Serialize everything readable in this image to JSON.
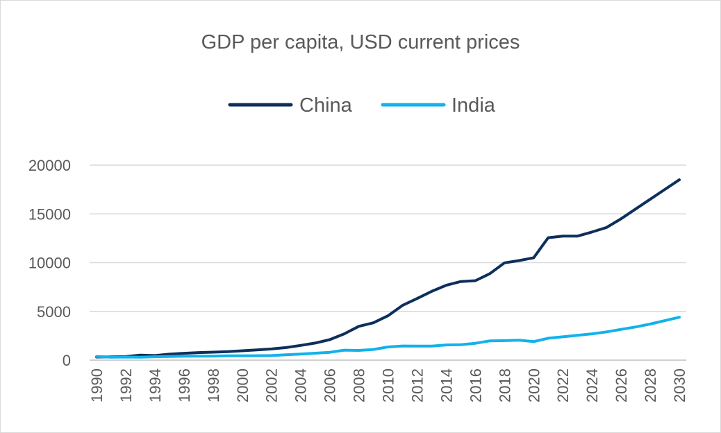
{
  "chart_data": {
    "type": "line",
    "title": "GDP per capita, USD current prices",
    "xlabel": "",
    "ylabel": "",
    "ylim": [
      0,
      20000
    ],
    "yticks": [
      "0",
      "5000",
      "10000",
      "15000",
      "20000"
    ],
    "xticks": [
      "1990",
      "1992",
      "1994",
      "1996",
      "1998",
      "2000",
      "2002",
      "2004",
      "2006",
      "2008",
      "2010",
      "2012",
      "2014",
      "2016",
      "2018",
      "2020",
      "2022",
      "2024",
      "2026",
      "2028",
      "2030"
    ],
    "x": [
      1990,
      1991,
      1992,
      1993,
      1994,
      1995,
      1996,
      1997,
      1998,
      1999,
      2000,
      2001,
      2002,
      2003,
      2004,
      2005,
      2006,
      2007,
      2008,
      2009,
      2010,
      2011,
      2012,
      2013,
      2014,
      2015,
      2016,
      2017,
      2018,
      2019,
      2020,
      2021,
      2022,
      2023,
      2024,
      2025,
      2026,
      2027,
      2028,
      2029,
      2030
    ],
    "grid": true,
    "legend_position": "top-center",
    "series": [
      {
        "name": "China",
        "color": "#0d2f5b",
        "values": [
          318,
          333,
          366,
          520,
          470,
          610,
          703,
          774,
          820,
          865,
          959,
          1053,
          1148,
          1288,
          1508,
          1753,
          2099,
          2694,
          3468,
          3832,
          4550,
          5618,
          6317,
          7050,
          7679,
          8067,
          8148,
          8879,
          9977,
          10217,
          10500,
          12556,
          12720,
          12720,
          13136,
          13600,
          14500,
          15500,
          16500,
          17500,
          18500
        ]
      },
      {
        "name": "India",
        "color": "#12b2ea",
        "values": [
          368,
          303,
          317,
          301,
          346,
          374,
          400,
          416,
          413,
          441,
          443,
          452,
          470,
          546,
          624,
          710,
          802,
          1022,
          993,
          1098,
          1351,
          1449,
          1435,
          1438,
          1560,
          1590,
          1732,
          1981,
          1997,
          2050,
          1900,
          2250,
          2390,
          2550,
          2700,
          2900,
          3150,
          3400,
          3700,
          4050,
          4400
        ]
      }
    ]
  }
}
